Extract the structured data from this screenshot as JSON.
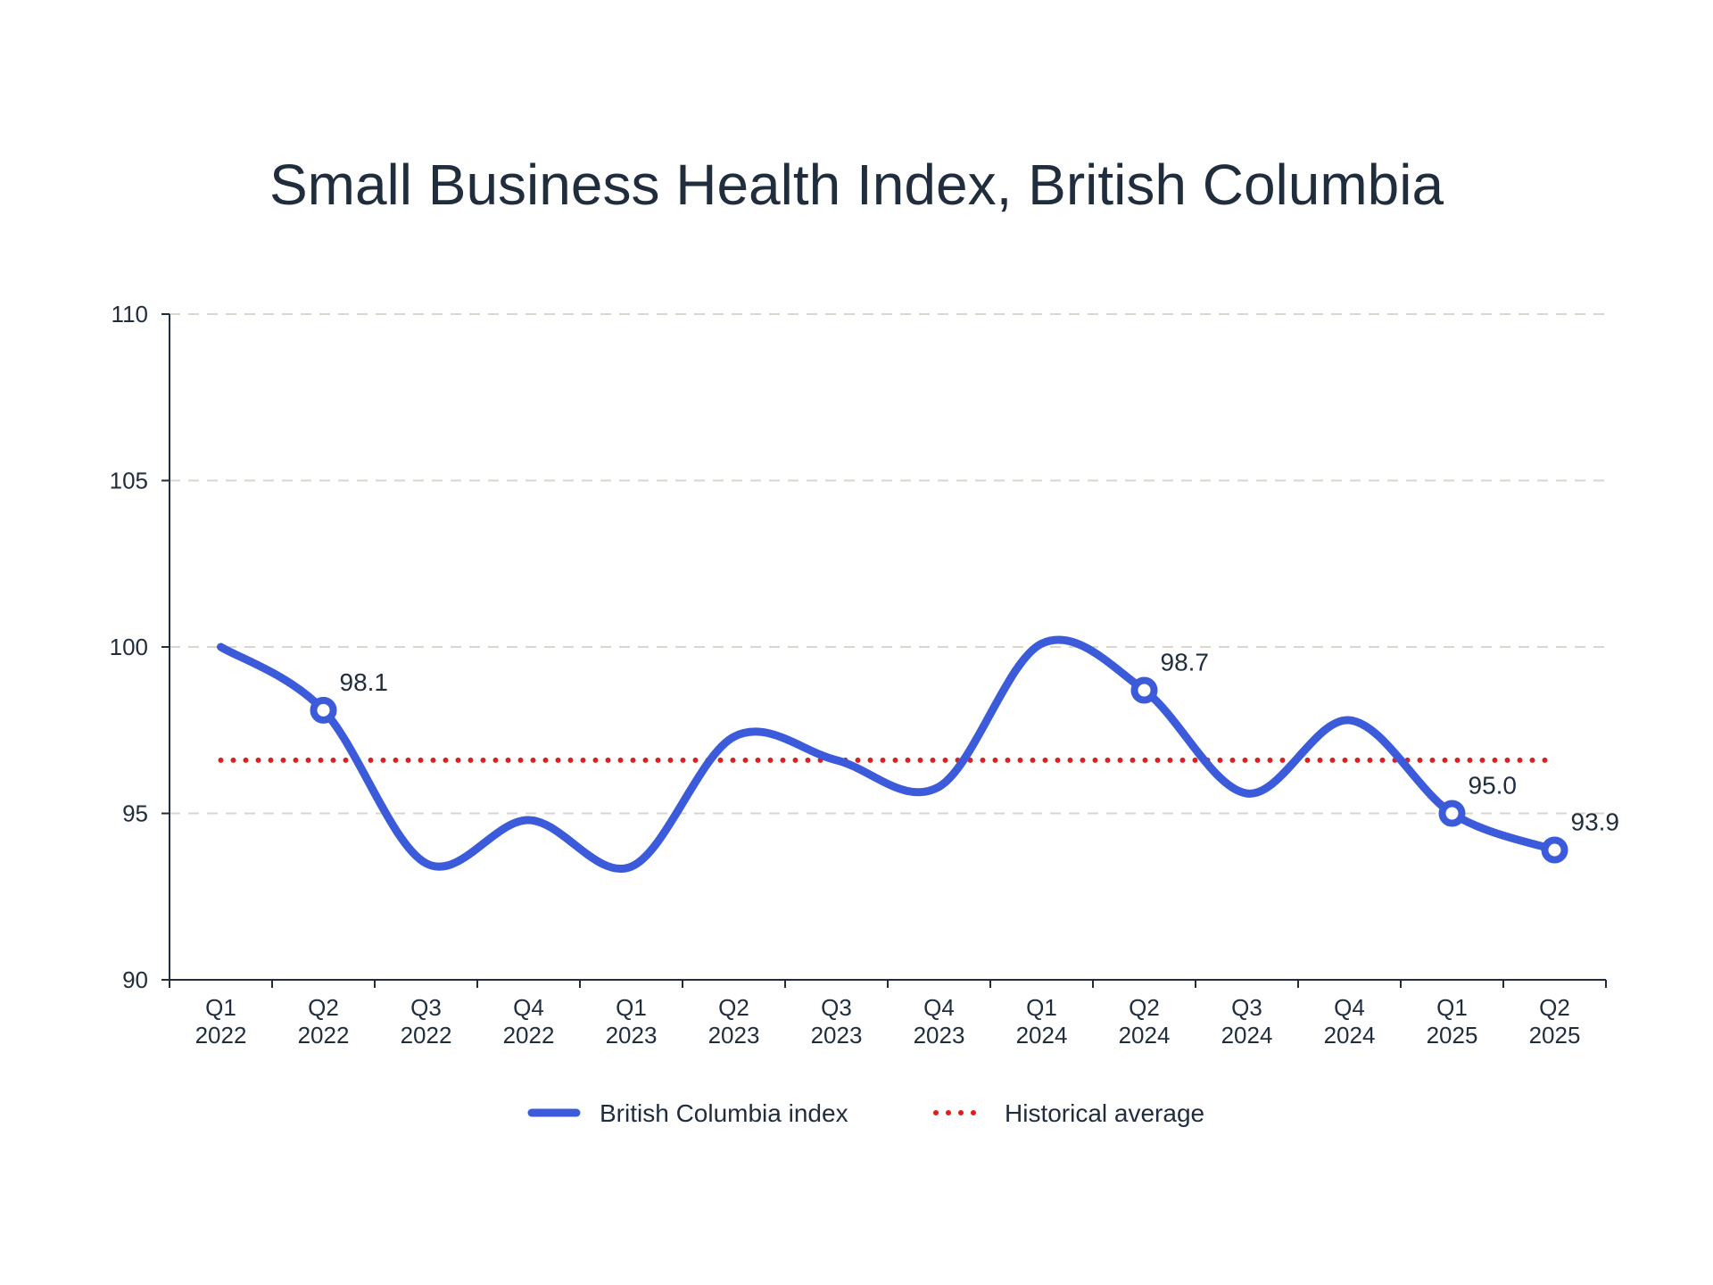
{
  "chart_data": {
    "type": "line",
    "title": "Small Business Health Index, British Columbia",
    "xlabel": "",
    "ylabel": "",
    "ylim": [
      90,
      110
    ],
    "yticks": [
      90,
      95,
      100,
      105,
      110
    ],
    "grid": true,
    "legend_position": "bottom",
    "categories": [
      [
        "Q1",
        "2022"
      ],
      [
        "Q2",
        "2022"
      ],
      [
        "Q3",
        "2022"
      ],
      [
        "Q4",
        "2022"
      ],
      [
        "Q1",
        "2023"
      ],
      [
        "Q2",
        "2023"
      ],
      [
        "Q3",
        "2023"
      ],
      [
        "Q4",
        "2023"
      ],
      [
        "Q1",
        "2024"
      ],
      [
        "Q2",
        "2024"
      ],
      [
        "Q3",
        "2024"
      ],
      [
        "Q4",
        "2024"
      ],
      [
        "Q1",
        "2025"
      ],
      [
        "Q2",
        "2025"
      ]
    ],
    "series": [
      {
        "name": "British Columbia index",
        "color": "#3b5bdb",
        "values": [
          100.0,
          98.1,
          93.5,
          94.8,
          93.4,
          97.3,
          96.6,
          95.8,
          100.1,
          98.7,
          95.6,
          97.8,
          95.0,
          93.9
        ],
        "labeled_points": [
          {
            "index": 1,
            "label": "98.1"
          },
          {
            "index": 9,
            "label": "98.7"
          },
          {
            "index": 12,
            "label": "95.0"
          },
          {
            "index": 13,
            "label": "93.9"
          }
        ]
      },
      {
        "name": "Historical average",
        "color": "#e01e1e",
        "style": "dotted",
        "value": 96.6
      }
    ]
  }
}
